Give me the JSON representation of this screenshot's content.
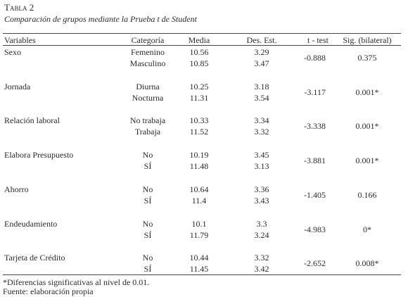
{
  "header": {
    "title": "Tabla 2",
    "subtitle": "Comparación de grupos mediante la Prueba t de Student"
  },
  "table": {
    "columns": [
      "Variables",
      "Categoría",
      "Media",
      "Des. Est.",
      "t - test",
      "Sig. (bilateral)"
    ],
    "groups": [
      {
        "variable": "Sexo",
        "rows": [
          [
            "Femenino",
            "10.56",
            "3.29"
          ],
          [
            "Masculino",
            "10.85",
            "3.47"
          ]
        ],
        "t": "-0.888",
        "sig": "0.375"
      },
      {
        "variable": "Jornada",
        "rows": [
          [
            "Diurna",
            "10.25",
            "3.18"
          ],
          [
            "Nocturna",
            "11.31",
            "3.54"
          ]
        ],
        "t": "-3.117",
        "sig": "0.001*"
      },
      {
        "variable": "Relación laboral",
        "rows": [
          [
            "No trabaja",
            "10.33",
            "3.34"
          ],
          [
            "Trabaja",
            "11.52",
            "3.32"
          ]
        ],
        "t": "-3.338",
        "sig": "0.001*"
      },
      {
        "variable": "Elabora Presupuesto",
        "rows": [
          [
            "No",
            "10.19",
            "3.45"
          ],
          [
            "SÍ",
            "11.48",
            "3.13"
          ]
        ],
        "t": "-3.881",
        "sig": "0.001*"
      },
      {
        "variable": "Ahorro",
        "rows": [
          [
            "No",
            "10.64",
            "3.36"
          ],
          [
            "SÍ",
            "11.4",
            "3.43"
          ]
        ],
        "t": "-1.405",
        "sig": "0.166"
      },
      {
        "variable": "Endeudamiento",
        "rows": [
          [
            "No",
            "10.1",
            "3.3"
          ],
          [
            "SÍ",
            "11.79",
            "3.24"
          ]
        ],
        "t": "-4.983",
        "sig": "0*"
      },
      {
        "variable": "Tarjeta de Crédito",
        "rows": [
          [
            "No",
            "10.44",
            "3.32"
          ],
          [
            "SÍ",
            "11.45",
            "3.42"
          ]
        ],
        "t": "-2.652",
        "sig": "0.008*"
      }
    ]
  },
  "footnotes": [
    "*Diferencias significativas al nivel de 0.01.",
    "Fuente: elaboración propia"
  ]
}
